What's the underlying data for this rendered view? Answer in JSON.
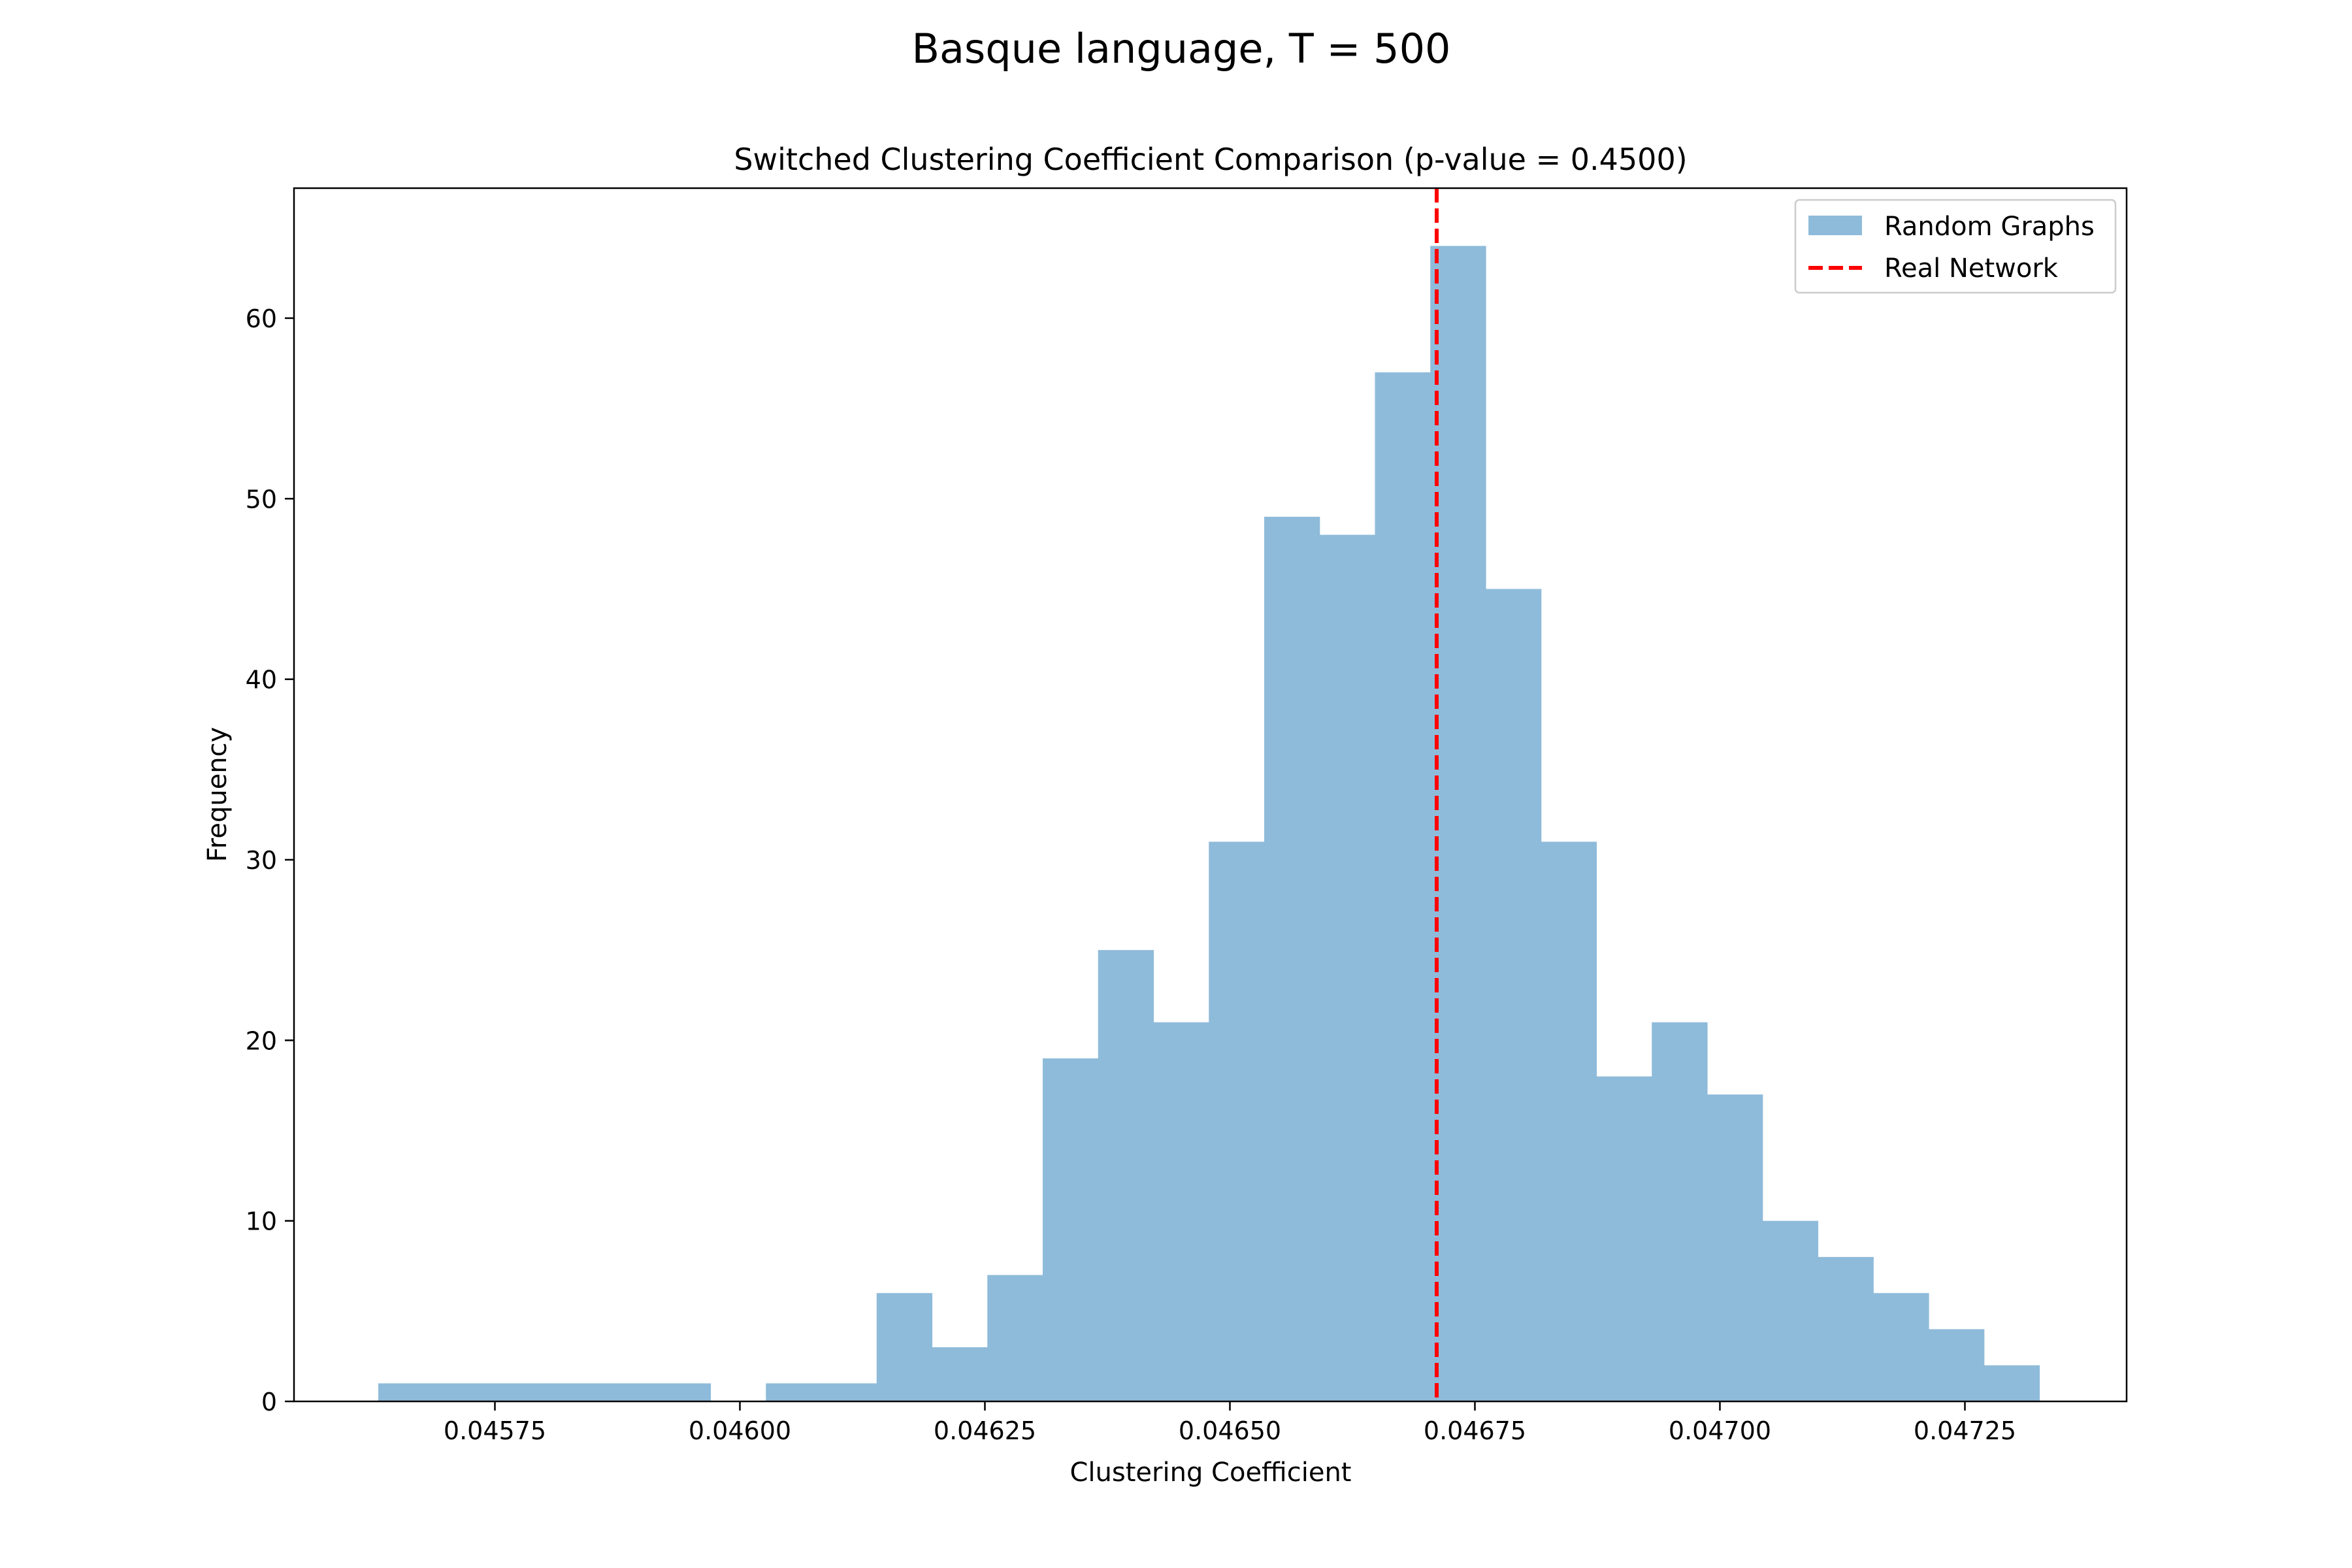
{
  "figure": {
    "suptitle": "Basque language, T = 500"
  },
  "chart_data": {
    "type": "bar",
    "title": "Switched Clustering Coefficient Comparison (p-value = 0.4500)",
    "xlabel": "Clustering Coefficient",
    "ylabel": "Frequency",
    "xlim": [
      0.045545,
      0.047415
    ],
    "ylim": [
      0,
      67.2
    ],
    "xticks": [
      0.04575,
      0.046,
      0.04625,
      0.0465,
      0.04675,
      0.047,
      0.04725
    ],
    "xtick_labels": [
      "0.04575",
      "0.04600",
      "0.04625",
      "0.04650",
      "0.04675",
      "0.04700",
      "0.04725"
    ],
    "yticks": [
      0,
      10,
      20,
      30,
      40,
      50,
      60
    ],
    "ytick_labels": [
      "0",
      "10",
      "20",
      "30",
      "40",
      "50",
      "60"
    ],
    "grid": false,
    "legend_position": "top-right",
    "series": [
      {
        "name": "Random Graphs",
        "kind": "histogram",
        "color": "#8fbbda",
        "bin_start": 0.045631,
        "bin_width": 5.65e-05,
        "counts": [
          1,
          1,
          1,
          1,
          1,
          1,
          0,
          1,
          1,
          6,
          3,
          7,
          19,
          25,
          21,
          31,
          49,
          48,
          57,
          64,
          45,
          31,
          18,
          21,
          17,
          10,
          8,
          6,
          4,
          2
        ]
      },
      {
        "name": "Real Network",
        "kind": "vline",
        "color": "#ff0000",
        "linestyle": "dashed",
        "x": 0.046711
      }
    ]
  }
}
